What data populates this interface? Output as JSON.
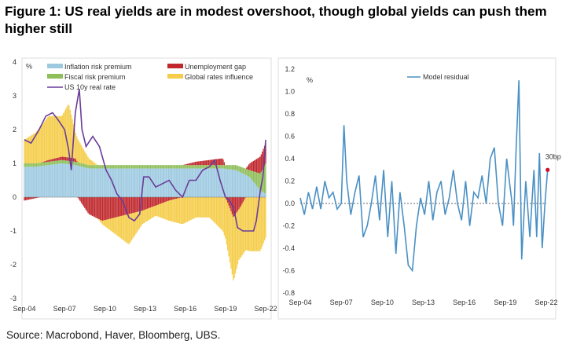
{
  "title": "Figure 1: US real yields are in modest overshoot, though global yields can push them higher still",
  "source": "Source: Macrobond, Haver, Bloomberg, UBS.",
  "colors": {
    "inflation_risk": "#9ecae1",
    "unemployment_gap": "#c0282d",
    "fiscal_risk": "#8fbf5a",
    "global_rates": "#f5cd4a",
    "real_rate": "#6a3d9a",
    "residual": "#4a90c4",
    "marker": "#d0112b"
  },
  "chart_data": [
    {
      "type": "area",
      "unit_label": "%",
      "ylim": [
        -3,
        4
      ],
      "y_ticks": [
        "4",
        "3",
        "2",
        "1",
        "0",
        "-1",
        "-2",
        "-3"
      ],
      "x_ticks": [
        "Sep-04",
        "Sep-07",
        "Sep-10",
        "Sep-13",
        "Sep-16",
        "Sep-19",
        "Sep-22"
      ],
      "x_range": [
        "2004-09",
        "2022-09"
      ],
      "legend": [
        "Inflation risk premium",
        "Unemployment gap",
        "Fiscal risk premium",
        "Global rates influence",
        "US 10y real rate"
      ],
      "series": [
        {
          "name": "Inflation risk premium",
          "x": [
            2004.7,
            2005.5,
            2006.5,
            2007.5,
            2008.5,
            2009.5,
            2010.5,
            2011.5,
            2012.5,
            2013.5,
            2014.5,
            2015.5,
            2016.5,
            2017.5,
            2018.5,
            2019.5,
            2020.5,
            2021.5,
            2022.3,
            2022.7
          ],
          "values": [
            0.9,
            0.9,
            0.95,
            1.0,
            0.95,
            0.85,
            0.85,
            0.85,
            0.85,
            0.85,
            0.85,
            0.85,
            0.85,
            0.85,
            0.85,
            0.85,
            0.8,
            0.6,
            0.2,
            0.1
          ]
        },
        {
          "name": "Fiscal risk premium",
          "x": [
            2004.7,
            2005.5,
            2006.5,
            2007.5,
            2008.5,
            2009.5,
            2010.5,
            2011.5,
            2012.5,
            2013.5,
            2014.5,
            2015.5,
            2016.5,
            2017.5,
            2018.5,
            2019.5,
            2020.5,
            2021.5,
            2022.3,
            2022.7
          ],
          "values": [
            0.1,
            0.1,
            0.1,
            0.1,
            0.1,
            0.1,
            0.1,
            0.1,
            0.1,
            0.1,
            0.1,
            0.1,
            0.1,
            0.1,
            0.1,
            0.1,
            0.15,
            0.2,
            0.5,
            0.9
          ]
        },
        {
          "name": "Unemployment gap",
          "x": [
            2004.7,
            2006.5,
            2007.5,
            2008.5,
            2009.0,
            2009.5,
            2010.5,
            2011.5,
            2012.5,
            2013.5,
            2014.5,
            2015.5,
            2016.5,
            2017.5,
            2018.5,
            2019.5,
            2020.3,
            2020.8,
            2021.5,
            2022.3,
            2022.7
          ],
          "values": [
            -0.1,
            0.05,
            0.1,
            0.1,
            -0.2,
            -0.5,
            -0.7,
            -0.6,
            -0.5,
            -0.4,
            -0.25,
            -0.1,
            0.0,
            0.1,
            0.15,
            0.2,
            -0.6,
            -0.3,
            0.2,
            0.5,
            0.6
          ]
        },
        {
          "name": "Global rates influence",
          "x": [
            2004.7,
            2005.5,
            2006.5,
            2007.5,
            2008.0,
            2008.5,
            2009.5,
            2010.5,
            2011.5,
            2012.5,
            2013.5,
            2014.5,
            2015.5,
            2016.5,
            2017.5,
            2018.5,
            2019.5,
            2020.3,
            2020.7,
            2021.5,
            2022.3,
            2022.7
          ],
          "values": [
            0.7,
            0.9,
            1.3,
            1.2,
            1.6,
            0.8,
            0.2,
            -0.1,
            -0.5,
            -0.9,
            -0.4,
            -0.3,
            -0.6,
            -0.8,
            -0.6,
            -0.6,
            -1.0,
            -1.9,
            -1.5,
            -1.6,
            -1.6,
            -1.2
          ]
        },
        {
          "name": "US 10y real rate",
          "x": [
            2004.7,
            2005.2,
            2005.8,
            2006.3,
            2006.8,
            2007.2,
            2007.7,
            2008.0,
            2008.2,
            2008.5,
            2008.8,
            2009.0,
            2009.3,
            2009.8,
            2010.3,
            2010.8,
            2011.2,
            2011.6,
            2012.0,
            2012.5,
            2012.9,
            2013.3,
            2013.6,
            2014.0,
            2014.5,
            2015.0,
            2015.5,
            2016.0,
            2016.5,
            2017.0,
            2017.5,
            2018.0,
            2018.5,
            2018.9,
            2019.3,
            2019.7,
            2020.0,
            2020.3,
            2020.6,
            2021.0,
            2021.4,
            2021.8,
            2022.0,
            2022.3,
            2022.5,
            2022.7
          ],
          "values": [
            1.7,
            1.6,
            2.0,
            2.4,
            2.5,
            2.3,
            2.0,
            1.4,
            0.8,
            2.5,
            3.2,
            2.0,
            1.5,
            1.8,
            1.5,
            0.8,
            0.5,
            0.1,
            -0.1,
            -0.6,
            -0.7,
            -0.5,
            0.6,
            0.6,
            0.3,
            0.4,
            0.5,
            0.2,
            0.0,
            0.5,
            0.5,
            0.8,
            0.9,
            1.1,
            0.5,
            0.0,
            -0.1,
            -0.3,
            -0.9,
            -1.0,
            -1.0,
            -1.0,
            -0.7,
            0.2,
            0.6,
            1.7
          ]
        }
      ]
    },
    {
      "type": "line",
      "unit_label": "%",
      "ylim": [
        -0.8,
        1.2
      ],
      "y_ticks": [
        "1.2",
        "1.0",
        "0.8",
        "0.6",
        "0.4",
        "0.2",
        "0.0",
        "-0.2",
        "-0.4",
        "-0.6",
        "-0.8"
      ],
      "x_ticks": [
        "Sep-04",
        "Sep-07",
        "Sep-10",
        "Sep-13",
        "Sep-16",
        "Sep-19",
        "Sep-22"
      ],
      "x_range": [
        "2004-09",
        "2022-09"
      ],
      "legend": [
        "Model residual"
      ],
      "annotation": "30bp",
      "series": [
        {
          "name": "Model residual",
          "x": [
            2004.7,
            2005.0,
            2005.3,
            2005.6,
            2005.9,
            2006.2,
            2006.5,
            2006.8,
            2007.1,
            2007.4,
            2007.7,
            2007.9,
            2008.1,
            2008.4,
            2008.7,
            2009.0,
            2009.3,
            2009.6,
            2009.9,
            2010.2,
            2010.5,
            2010.8,
            2011.1,
            2011.4,
            2011.7,
            2012.0,
            2012.3,
            2012.6,
            2012.9,
            2013.2,
            2013.5,
            2013.8,
            2014.1,
            2014.4,
            2014.7,
            2015.0,
            2015.3,
            2015.6,
            2015.9,
            2016.2,
            2016.5,
            2016.8,
            2017.1,
            2017.4,
            2017.7,
            2018.0,
            2018.3,
            2018.6,
            2018.9,
            2019.2,
            2019.5,
            2019.8,
            2020.0,
            2020.2,
            2020.3,
            2020.5,
            2020.7,
            2020.9,
            2021.2,
            2021.5,
            2021.8,
            2022.0,
            2022.2,
            2022.4,
            2022.6,
            2022.8
          ],
          "values": [
            0.05,
            -0.1,
            0.1,
            -0.05,
            0.15,
            -0.05,
            0.2,
            0.05,
            0.1,
            -0.05,
            0.0,
            0.7,
            0.2,
            -0.1,
            0.1,
            0.25,
            -0.3,
            -0.2,
            0.0,
            0.25,
            -0.15,
            0.3,
            -0.3,
            0.2,
            -0.45,
            0.1,
            -0.2,
            -0.55,
            -0.6,
            -0.2,
            0.05,
            -0.1,
            0.2,
            -0.15,
            0.1,
            0.2,
            -0.1,
            0.05,
            0.3,
            0.0,
            -0.15,
            0.2,
            -0.2,
            0.1,
            0.05,
            0.25,
            0.0,
            0.4,
            0.5,
            0.0,
            -0.2,
            0.4,
            0.2,
            0.0,
            -0.2,
            0.5,
            1.1,
            -0.5,
            0.2,
            -0.3,
            0.3,
            -0.3,
            0.45,
            -0.4,
            0.0,
            0.3
          ]
        }
      ]
    }
  ]
}
